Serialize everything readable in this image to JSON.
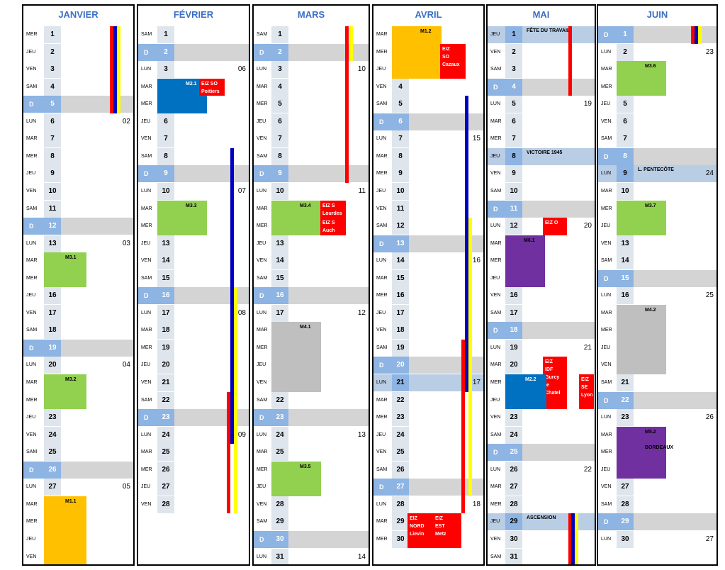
{
  "colors": {
    "title": "#3b6fc4",
    "sunday": "#d4d4d4",
    "sunday_cell": "#8db4e2",
    "holiday": "#b9cde5",
    "green": "#92d050",
    "orange": "#ffc000",
    "blue": "#0070c0",
    "red": "#ff0000",
    "purple": "#7030a0",
    "gray": "#bfbfbf",
    "navy": "#0000c0",
    "yellow": "#ffff00"
  },
  "months": [
    {
      "name": "JANVIER",
      "days": [
        {
          "n": "1",
          "d": "MER"
        },
        {
          "n": "2",
          "d": "JEU"
        },
        {
          "n": "3",
          "d": "VEN"
        },
        {
          "n": "4",
          "d": "SAM"
        },
        {
          "n": "5",
          "d": "D"
        },
        {
          "n": "6",
          "d": "LUN",
          "w": "02"
        },
        {
          "n": "7",
          "d": "MAR"
        },
        {
          "n": "8",
          "d": "MER"
        },
        {
          "n": "9",
          "d": "JEU"
        },
        {
          "n": "10",
          "d": "VEN"
        },
        {
          "n": "11",
          "d": "SAM"
        },
        {
          "n": "12",
          "d": "D"
        },
        {
          "n": "13",
          "d": "LUN",
          "w": "03"
        },
        {
          "n": "14",
          "d": "MAR"
        },
        {
          "n": "15",
          "d": "MER"
        },
        {
          "n": "16",
          "d": "JEU"
        },
        {
          "n": "17",
          "d": "VEN"
        },
        {
          "n": "18",
          "d": "SAM"
        },
        {
          "n": "19",
          "d": "D"
        },
        {
          "n": "20",
          "d": "LUN",
          "w": "04"
        },
        {
          "n": "21",
          "d": "MAR"
        },
        {
          "n": "22",
          "d": "MER"
        },
        {
          "n": "23",
          "d": "JEU"
        },
        {
          "n": "24",
          "d": "VEN"
        },
        {
          "n": "25",
          "d": "SAM"
        },
        {
          "n": "26",
          "d": "D"
        },
        {
          "n": "27",
          "d": "LUN",
          "w": "05"
        },
        {
          "n": "28",
          "d": "MAR"
        },
        {
          "n": "29",
          "d": "MER"
        },
        {
          "n": "30",
          "d": "JEU"
        },
        {
          "n": "31",
          "d": "VEN"
        }
      ],
      "events": [
        {
          "label": "M3.1",
          "start": 14,
          "end": 15,
          "color": "green"
        },
        {
          "label": "M3.2",
          "start": 21,
          "end": 22,
          "color": "green"
        },
        {
          "label": "M1.1",
          "start": 28,
          "end": 31,
          "color": "orange"
        }
      ],
      "bars": [
        {
          "color": "red",
          "start": 1,
          "end": 5,
          "col": 0
        },
        {
          "color": "navy",
          "start": 1,
          "end": 5,
          "col": 1
        },
        {
          "color": "yellow",
          "start": 1,
          "end": 5,
          "col": 2
        }
      ]
    },
    {
      "name": "FÉVRIER",
      "days": [
        {
          "n": "1",
          "d": "SAM"
        },
        {
          "n": "2",
          "d": "D"
        },
        {
          "n": "3",
          "d": "LUN",
          "w": "06"
        },
        {
          "n": "4",
          "d": "MAR"
        },
        {
          "n": "5",
          "d": "MER"
        },
        {
          "n": "6",
          "d": "JEU"
        },
        {
          "n": "7",
          "d": "VEN"
        },
        {
          "n": "8",
          "d": "SAM"
        },
        {
          "n": "9",
          "d": "D"
        },
        {
          "n": "10",
          "d": "LUN",
          "w": "07"
        },
        {
          "n": "11",
          "d": "MAR"
        },
        {
          "n": "12",
          "d": "MER"
        },
        {
          "n": "13",
          "d": "JEU"
        },
        {
          "n": "14",
          "d": "VEN"
        },
        {
          "n": "15",
          "d": "SAM"
        },
        {
          "n": "16",
          "d": "D"
        },
        {
          "n": "17",
          "d": "LUN",
          "w": "08"
        },
        {
          "n": "18",
          "d": "MAR"
        },
        {
          "n": "19",
          "d": "MER"
        },
        {
          "n": "20",
          "d": "JEU"
        },
        {
          "n": "21",
          "d": "VEN"
        },
        {
          "n": "22",
          "d": "SAM"
        },
        {
          "n": "23",
          "d": "D"
        },
        {
          "n": "24",
          "d": "LUN",
          "w": "09"
        },
        {
          "n": "25",
          "d": "MAR"
        },
        {
          "n": "26",
          "d": "MER"
        },
        {
          "n": "27",
          "d": "JEU"
        },
        {
          "n": "28",
          "d": "VEN"
        }
      ],
      "events": [
        {
          "label": "M2.1",
          "start": 4,
          "end": 5,
          "color": "blue"
        },
        {
          "label": "EIZ SO\nPoitiers",
          "start": 4,
          "end": 4,
          "color": "red",
          "pos": "side"
        },
        {
          "label": "M3.3",
          "start": 11,
          "end": 12,
          "color": "green"
        }
      ],
      "bars": [
        {
          "color": "navy",
          "start": 8,
          "end": 24,
          "col": 1
        },
        {
          "color": "yellow",
          "start": 16,
          "end": 28,
          "col": 2
        },
        {
          "color": "red",
          "start": 22,
          "end": 28,
          "col": 0
        }
      ]
    },
    {
      "name": "MARS",
      "days": [
        {
          "n": "1",
          "d": "SAM"
        },
        {
          "n": "2",
          "d": "D"
        },
        {
          "n": "3",
          "d": "LUN",
          "w": "10"
        },
        {
          "n": "4",
          "d": "MAR"
        },
        {
          "n": "5",
          "d": "MER"
        },
        {
          "n": "6",
          "d": "JEU"
        },
        {
          "n": "7",
          "d": "VEN"
        },
        {
          "n": "8",
          "d": "SAM"
        },
        {
          "n": "9",
          "d": "D"
        },
        {
          "n": "10",
          "d": "LUN",
          "w": "11"
        },
        {
          "n": "11",
          "d": "MAR"
        },
        {
          "n": "12",
          "d": "MER"
        },
        {
          "n": "13",
          "d": "JEU"
        },
        {
          "n": "14",
          "d": "VEN"
        },
        {
          "n": "15",
          "d": "SAM"
        },
        {
          "n": "16",
          "d": "D"
        },
        {
          "n": "17",
          "d": "LUN",
          "w": "12"
        },
        {
          "n": "18",
          "d": "MAR"
        },
        {
          "n": "19",
          "d": "MER"
        },
        {
          "n": "20",
          "d": "JEU"
        },
        {
          "n": "21",
          "d": "VEN"
        },
        {
          "n": "22",
          "d": "SAM"
        },
        {
          "n": "23",
          "d": "D"
        },
        {
          "n": "24",
          "d": "LUN",
          "w": "13"
        },
        {
          "n": "25",
          "d": "MAR"
        },
        {
          "n": "26",
          "d": "MER"
        },
        {
          "n": "27",
          "d": "JEU"
        },
        {
          "n": "28",
          "d": "VEN"
        },
        {
          "n": "29",
          "d": "SAM"
        },
        {
          "n": "30",
          "d": "D"
        },
        {
          "n": "31",
          "d": "LUN",
          "w": "14"
        }
      ],
      "events": [
        {
          "label": "M3.4",
          "start": 11,
          "end": 12,
          "color": "green"
        },
        {
          "label": "EIZ S\nLourdes",
          "start": 11,
          "end": 11,
          "color": "red",
          "pos": "side"
        },
        {
          "label": "EIZ S\nAuch",
          "start": 12,
          "end": 12,
          "color": "red",
          "pos": "side"
        },
        {
          "label": "M4.1",
          "start": 18,
          "end": 21,
          "color": "gray"
        },
        {
          "label": "M3.5",
          "start": 26,
          "end": 27,
          "color": "green"
        }
      ],
      "bars": [
        {
          "color": "red",
          "start": 1,
          "end": 9,
          "col": 0
        },
        {
          "color": "yellow",
          "start": 1,
          "end": 2,
          "col": 1
        }
      ]
    },
    {
      "name": "AVRIL",
      "days": [
        {
          "n": "1",
          "d": "MAR"
        },
        {
          "n": "2",
          "d": "MER"
        },
        {
          "n": "3",
          "d": "JEU"
        },
        {
          "n": "4",
          "d": "VEN"
        },
        {
          "n": "5",
          "d": "SAM"
        },
        {
          "n": "6",
          "d": "D"
        },
        {
          "n": "7",
          "d": "LUN",
          "w": "15"
        },
        {
          "n": "8",
          "d": "MAR"
        },
        {
          "n": "9",
          "d": "MER"
        },
        {
          "n": "10",
          "d": "JEU"
        },
        {
          "n": "11",
          "d": "VEN"
        },
        {
          "n": "12",
          "d": "SAM"
        },
        {
          "n": "13",
          "d": "D"
        },
        {
          "n": "14",
          "d": "LUN",
          "w": "16"
        },
        {
          "n": "15",
          "d": "MAR"
        },
        {
          "n": "16",
          "d": "MER"
        },
        {
          "n": "17",
          "d": "JEU"
        },
        {
          "n": "18",
          "d": "VEN"
        },
        {
          "n": "19",
          "d": "SAM"
        },
        {
          "n": "20",
          "d": "D"
        },
        {
          "n": "21",
          "d": "LUN",
          "w": "17",
          "hol": true
        },
        {
          "n": "22",
          "d": "MAR"
        },
        {
          "n": "23",
          "d": "MER"
        },
        {
          "n": "24",
          "d": "JEU"
        },
        {
          "n": "25",
          "d": "VEN"
        },
        {
          "n": "26",
          "d": "SAM"
        },
        {
          "n": "27",
          "d": "D"
        },
        {
          "n": "28",
          "d": "LUN",
          "w": "18"
        },
        {
          "n": "29",
          "d": "MAR"
        },
        {
          "n": "30",
          "d": "MER"
        }
      ],
      "events": [
        {
          "label": "M1.2",
          "start": 1,
          "end": 3,
          "color": "orange"
        },
        {
          "label": "EIZ\nSO\nCazaux",
          "start": 2,
          "end": 3,
          "color": "red",
          "pos": "side"
        },
        {
          "label": "EIZ\nNORD\nLievin",
          "start": 29,
          "end": 30,
          "color": "red",
          "pos": "left"
        },
        {
          "label": "EIZ\nEST\nMetz",
          "start": 29,
          "end": 30,
          "color": "red",
          "pos": "right"
        }
      ],
      "bars": [
        {
          "color": "navy",
          "start": 5,
          "end": 21,
          "col": 1
        },
        {
          "color": "yellow",
          "start": 12,
          "end": 27,
          "col": 2
        },
        {
          "color": "red",
          "start": 19,
          "end": 28,
          "col": 0
        }
      ]
    },
    {
      "name": "MAI",
      "days": [
        {
          "n": "1",
          "d": "JEU",
          "hol": true,
          "h": "FÊTE DU TRAVAIL"
        },
        {
          "n": "2",
          "d": "VEN"
        },
        {
          "n": "3",
          "d": "SAM"
        },
        {
          "n": "4",
          "d": "D"
        },
        {
          "n": "5",
          "d": "LUN",
          "w": "19"
        },
        {
          "n": "6",
          "d": "MAR"
        },
        {
          "n": "7",
          "d": "MER"
        },
        {
          "n": "8",
          "d": "JEU",
          "hol": true,
          "h": "VICTOIRE 1945"
        },
        {
          "n": "9",
          "d": "VEN"
        },
        {
          "n": "10",
          "d": "SAM"
        },
        {
          "n": "11",
          "d": "D"
        },
        {
          "n": "12",
          "d": "LUN",
          "w": "20"
        },
        {
          "n": "13",
          "d": "MAR"
        },
        {
          "n": "14",
          "d": "MER"
        },
        {
          "n": "15",
          "d": "JEU"
        },
        {
          "n": "16",
          "d": "VEN"
        },
        {
          "n": "17",
          "d": "SAM"
        },
        {
          "n": "18",
          "d": "D"
        },
        {
          "n": "19",
          "d": "LUN",
          "w": "21"
        },
        {
          "n": "20",
          "d": "MAR"
        },
        {
          "n": "21",
          "d": "MER"
        },
        {
          "n": "22",
          "d": "JEU"
        },
        {
          "n": "23",
          "d": "VEN"
        },
        {
          "n": "24",
          "d": "SAM"
        },
        {
          "n": "25",
          "d": "D"
        },
        {
          "n": "26",
          "d": "LUN",
          "w": "22"
        },
        {
          "n": "27",
          "d": "MAR"
        },
        {
          "n": "28",
          "d": "MER"
        },
        {
          "n": "29",
          "d": "JEU",
          "hol": true,
          "h": "ASCENSION"
        },
        {
          "n": "30",
          "d": "VEN"
        },
        {
          "n": "31",
          "d": "SAM"
        }
      ],
      "events": [
        {
          "label": "EIZ O",
          "start": 12,
          "end": 12,
          "color": "red",
          "pos": "mid"
        },
        {
          "label": "M6.1",
          "start": 13,
          "end": 15,
          "color": "purple"
        },
        {
          "label": "EIZ\nIDF\nGurcy\nle Chatel",
          "start": 20,
          "end": 22,
          "color": "red",
          "pos": "mid"
        },
        {
          "label": "EIZ\nSE\nLyon",
          "start": 21,
          "end": 22,
          "color": "red",
          "pos": "right"
        },
        {
          "label": "M2.2",
          "start": 21,
          "end": 22,
          "color": "blue"
        }
      ],
      "bars": [
        {
          "color": "red",
          "start": 1,
          "end": 4,
          "col": 0
        },
        {
          "color": "red",
          "start": 29,
          "end": 31,
          "col": 0
        },
        {
          "color": "navy",
          "start": 29,
          "end": 31,
          "col": 1
        },
        {
          "color": "yellow",
          "start": 29,
          "end": 31,
          "col": 2
        }
      ]
    },
    {
      "name": "JUIN",
      "days": [
        {
          "n": "1",
          "d": "D"
        },
        {
          "n": "2",
          "d": "LUN",
          "w": "23"
        },
        {
          "n": "3",
          "d": "MAR"
        },
        {
          "n": "4",
          "d": "MER"
        },
        {
          "n": "5",
          "d": "JEU"
        },
        {
          "n": "6",
          "d": "VEN"
        },
        {
          "n": "7",
          "d": "SAM"
        },
        {
          "n": "8",
          "d": "D"
        },
        {
          "n": "9",
          "d": "LUN",
          "w": "24",
          "hol": true,
          "h": "L. PENTECÔTE"
        },
        {
          "n": "10",
          "d": "MAR"
        },
        {
          "n": "11",
          "d": "MER"
        },
        {
          "n": "12",
          "d": "JEU"
        },
        {
          "n": "13",
          "d": "VEN"
        },
        {
          "n": "14",
          "d": "SAM"
        },
        {
          "n": "15",
          "d": "D"
        },
        {
          "n": "16",
          "d": "LUN",
          "w": "25"
        },
        {
          "n": "17",
          "d": "MAR"
        },
        {
          "n": "18",
          "d": "MER"
        },
        {
          "n": "19",
          "d": "JEU"
        },
        {
          "n": "20",
          "d": "VEN"
        },
        {
          "n": "21",
          "d": "SAM"
        },
        {
          "n": "22",
          "d": "D"
        },
        {
          "n": "23",
          "d": "LUN",
          "w": "26"
        },
        {
          "n": "24",
          "d": "MAR"
        },
        {
          "n": "25",
          "d": "MER"
        },
        {
          "n": "26",
          "d": "JEU"
        },
        {
          "n": "27",
          "d": "VEN"
        },
        {
          "n": "28",
          "d": "SAM"
        },
        {
          "n": "29",
          "d": "D"
        },
        {
          "n": "30",
          "d": "LUN",
          "w": "27"
        }
      ],
      "events": [
        {
          "label": "M3.6",
          "start": 3,
          "end": 4,
          "color": "green"
        },
        {
          "label": "M3.7",
          "start": 11,
          "end": 12,
          "color": "green"
        },
        {
          "label": "M4.2",
          "start": 17,
          "end": 20,
          "color": "gray"
        },
        {
          "label": "M5.2\n\nBORDEAUX",
          "start": 24,
          "end": 26,
          "color": "purple",
          "dark": true
        }
      ],
      "bars": [
        {
          "color": "red",
          "start": 1,
          "end": 1,
          "col": 0
        },
        {
          "color": "navy",
          "start": 1,
          "end": 1,
          "col": 1
        },
        {
          "color": "yellow",
          "start": 1,
          "end": 1,
          "col": 2
        }
      ]
    }
  ]
}
